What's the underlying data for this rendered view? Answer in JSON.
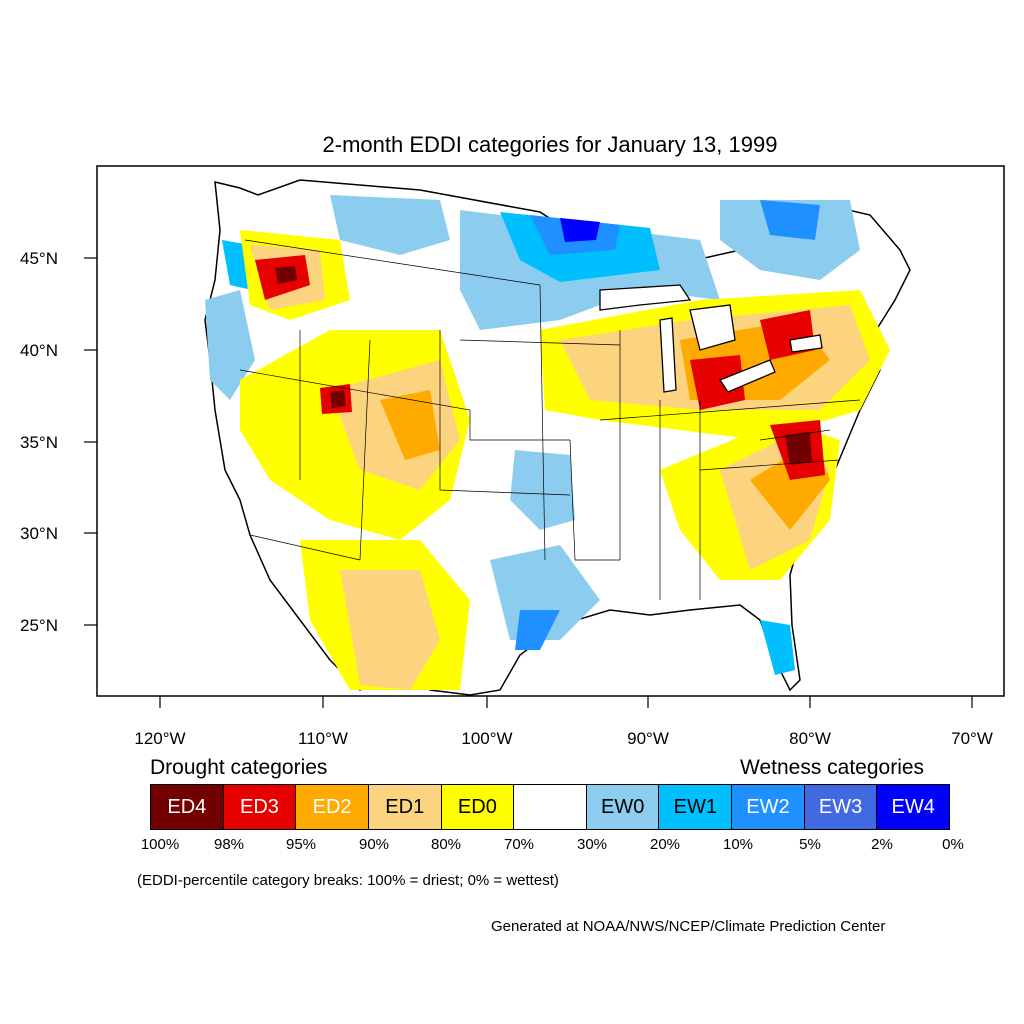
{
  "title": "2-month EDDI categories for January 13, 1999",
  "map": {
    "lat_labels": [
      "45°N",
      "40°N",
      "35°N",
      "30°N",
      "25°N"
    ],
    "lon_labels": [
      "120°W",
      "110°W",
      "100°W",
      "90°W",
      "80°W",
      "70°W"
    ]
  },
  "legend": {
    "drought_header": "Drought categories",
    "wetness_header": "Wetness categories",
    "categories": [
      {
        "label": "ED4",
        "color": "#730000",
        "text_color": "#ffffff"
      },
      {
        "label": "ED3",
        "color": "#e60000",
        "text_color": "#ffffff"
      },
      {
        "label": "ED2",
        "color": "#ffaa00",
        "text_color": "#ffffff"
      },
      {
        "label": "ED1",
        "color": "#fcd37f",
        "text_color": "#000000"
      },
      {
        "label": "ED0",
        "color": "#ffff00",
        "text_color": "#000000"
      },
      {
        "label": "",
        "color": "#ffffff",
        "text_color": "#000000"
      },
      {
        "label": "EW0",
        "color": "#8ccdef",
        "text_color": "#000000"
      },
      {
        "label": "EW1",
        "color": "#00bfff",
        "text_color": "#000000"
      },
      {
        "label": "EW2",
        "color": "#1e90ff",
        "text_color": "#ffffff"
      },
      {
        "label": "EW3",
        "color": "#4169e1",
        "text_color": "#ffffff"
      },
      {
        "label": "EW4",
        "color": "#0000ff",
        "text_color": "#ffffff"
      }
    ],
    "breaks": [
      "100%",
      "98%",
      "95%",
      "90%",
      "80%",
      "70%",
      "30%",
      "20%",
      "10%",
      "5%",
      "2%",
      "0%"
    ]
  },
  "note": "(EDDI-percentile category breaks: 100% = driest; 0% = wettest)",
  "credit": "Generated at NOAA/NWS/NCEP/Climate Prediction Center"
}
